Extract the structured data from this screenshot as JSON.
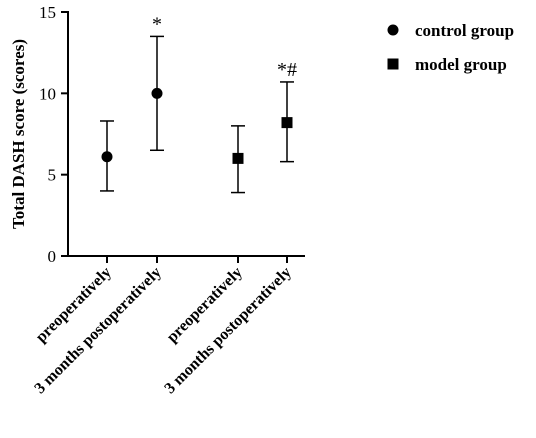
{
  "chart_data": {
    "type": "scatter",
    "ylabel": "Total DASH score (scores)",
    "xlabel": "",
    "ylim": [
      0,
      15
    ],
    "yticks": [
      0,
      5,
      10,
      15
    ],
    "grid": false,
    "legend_position": "top-right",
    "categories": [
      "preoperatively",
      "3 months postoperatively",
      "preoperatively",
      "3 months postoperatively"
    ],
    "series": [
      {
        "name": "control group",
        "marker": "circle",
        "color": "#000000",
        "points": [
          {
            "category_index": 0,
            "mean": 6.1,
            "error_low": 4.0,
            "error_high": 8.3,
            "annotation": ""
          },
          {
            "category_index": 1,
            "mean": 10.0,
            "error_low": 6.5,
            "error_high": 13.5,
            "annotation": "*"
          }
        ]
      },
      {
        "name": "model group",
        "marker": "square",
        "color": "#000000",
        "points": [
          {
            "category_index": 2,
            "mean": 6.0,
            "error_low": 3.9,
            "error_high": 8.0,
            "annotation": ""
          },
          {
            "category_index": 3,
            "mean": 8.2,
            "error_low": 5.8,
            "error_high": 10.7,
            "annotation": "*#"
          }
        ]
      }
    ]
  }
}
